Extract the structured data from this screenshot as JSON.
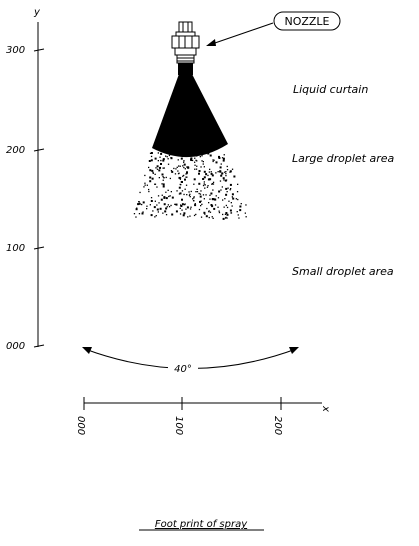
{
  "axes": {
    "y_axis_label": "y",
    "x_axis_label": "x",
    "y_ticks": [
      "300",
      "200",
      "100",
      "000"
    ],
    "x_ticks": [
      "000",
      "100",
      "200"
    ]
  },
  "callout": {
    "nozzle_label": "NOZZLE"
  },
  "regions": {
    "liquid_curtain": "Liquid curtain",
    "large_droplet_area": "Large droplet area",
    "small_droplet_area": "Small droplet area"
  },
  "angle_label": "40°",
  "caption": "Foot print of spray",
  "colors": {
    "ink": "#000000",
    "background": "#ffffff"
  }
}
